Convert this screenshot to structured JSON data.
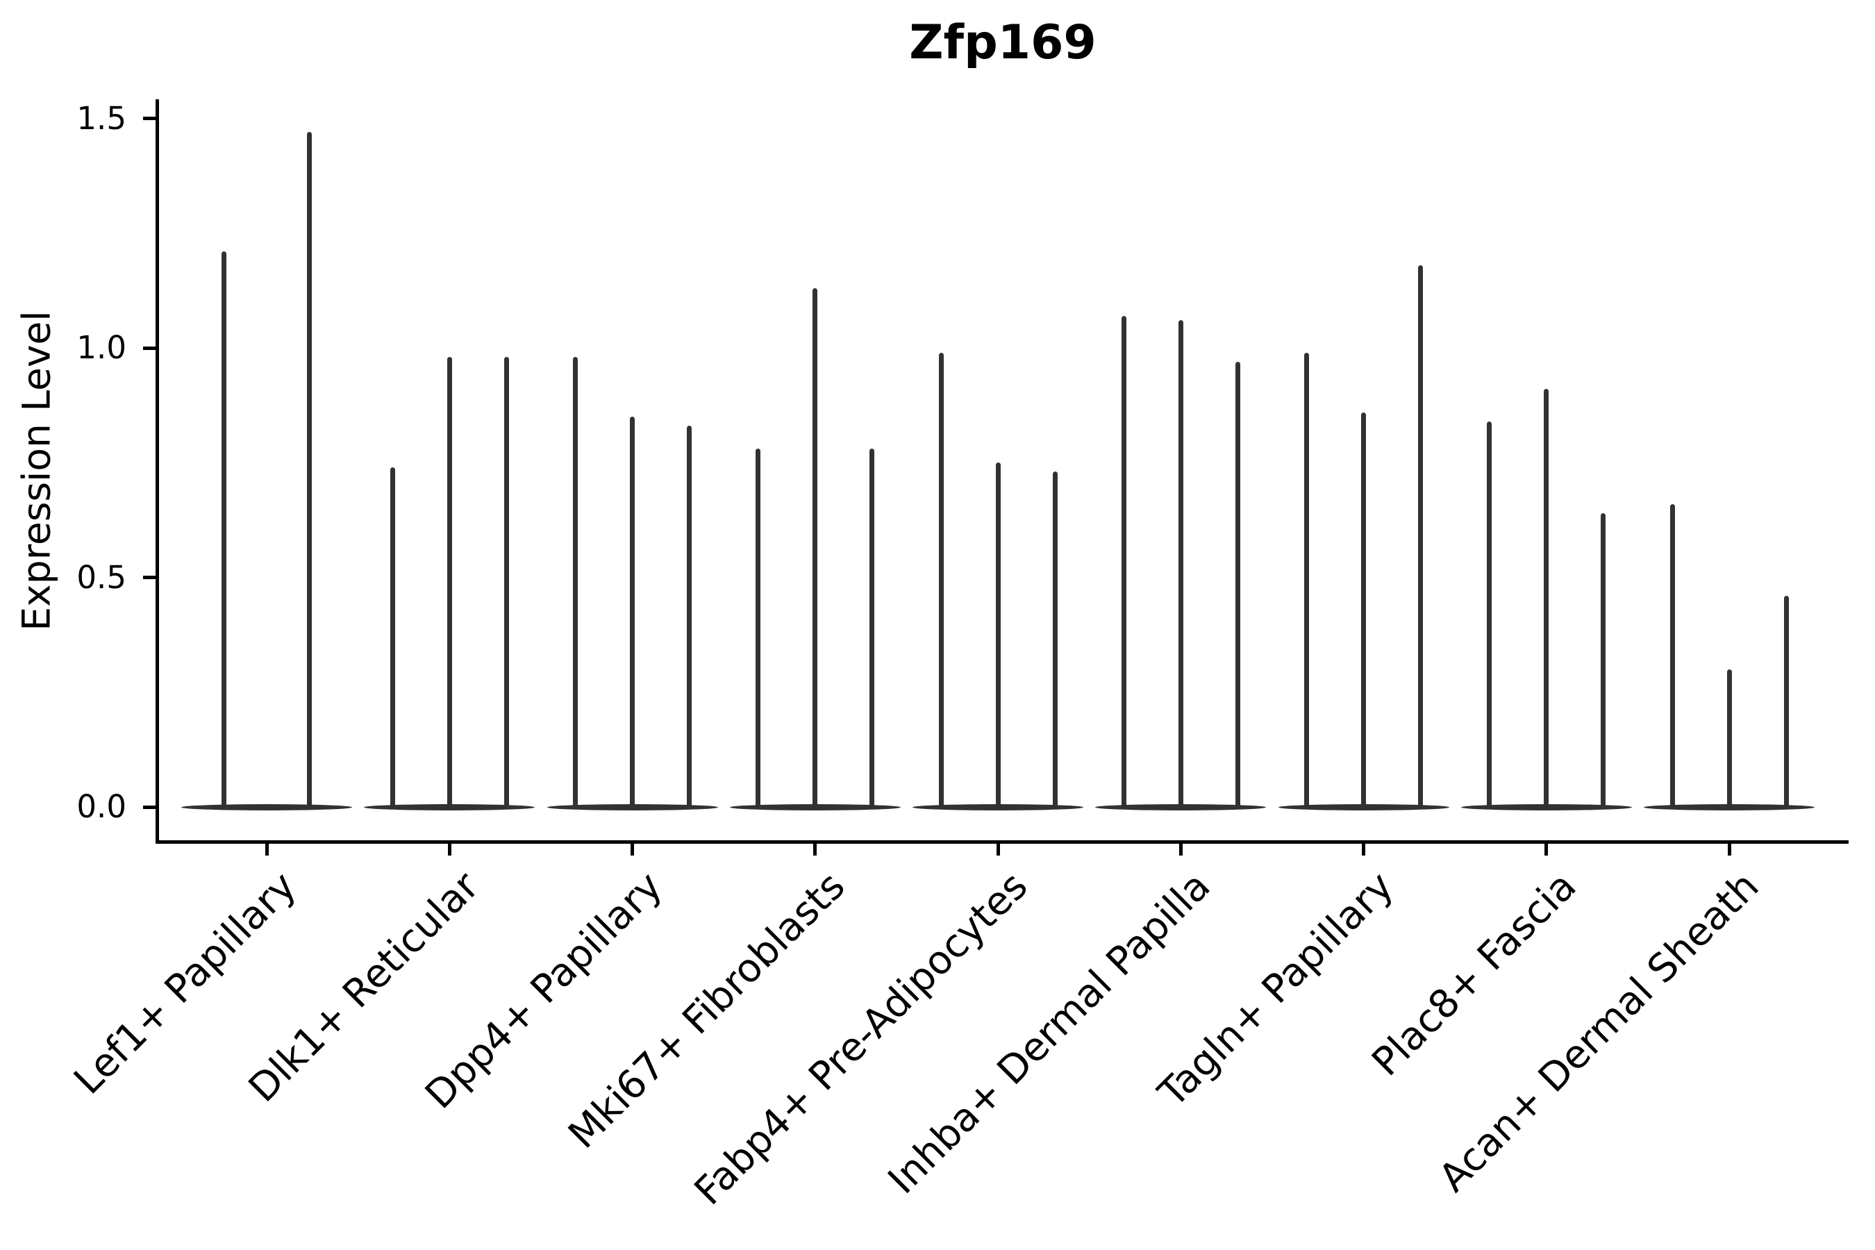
{
  "title": "Zfp169",
  "ylabel": "Expression Level",
  "chart_data": {
    "type": "violin",
    "title": "Zfp169",
    "xlabel": "",
    "ylabel": "Expression Level",
    "ylim": [
      0,
      1.55
    ],
    "yticks": [
      "0.0",
      "0.5",
      "1.0",
      "1.5"
    ],
    "ytick_values": [
      0.0,
      0.5,
      1.0,
      1.5
    ],
    "grid": false,
    "legend_position": "none",
    "x_label_rotation_deg": 45,
    "violin_color": "#323232",
    "axis_color": "#000000",
    "categories": [
      "Lef1+ Papillary",
      "Dlk1+ Reticular",
      "Dpp4+ Papillary",
      "Mki67+ Fibroblasts",
      "Fabp4+ Pre-Adipocytes",
      "Inhba+ Dermal Papilla",
      "Tagln+ Papillary",
      "Plac8+ Fascia",
      "Acan+ Dermal Sheath"
    ],
    "series": [
      {
        "category": "Lef1+ Papillary",
        "violin_max_values": [
          1.21,
          1.47
        ]
      },
      {
        "category": "Dlk1+ Reticular",
        "violin_max_values": [
          0.74,
          0.98,
          0.98
        ]
      },
      {
        "category": "Dpp4+ Papillary",
        "violin_max_values": [
          0.98,
          0.85,
          0.83
        ]
      },
      {
        "category": "Mki67+ Fibroblasts",
        "violin_max_values": [
          0.78,
          1.13,
          0.78
        ]
      },
      {
        "category": "Fabp4+ Pre-Adipocytes",
        "violin_max_values": [
          0.99,
          0.75,
          0.73
        ]
      },
      {
        "category": "Inhba+ Dermal Papilla",
        "violin_max_values": [
          1.07,
          1.06,
          0.97
        ]
      },
      {
        "category": "Tagln+ Papillary",
        "violin_max_values": [
          0.99,
          0.86,
          1.18
        ]
      },
      {
        "category": "Plac8+ Fascia",
        "violin_max_values": [
          0.84,
          0.91,
          0.64
        ]
      },
      {
        "category": "Acan+ Dermal Sheath",
        "violin_max_values": [
          0.66,
          0.3,
          0.46
        ]
      }
    ]
  }
}
